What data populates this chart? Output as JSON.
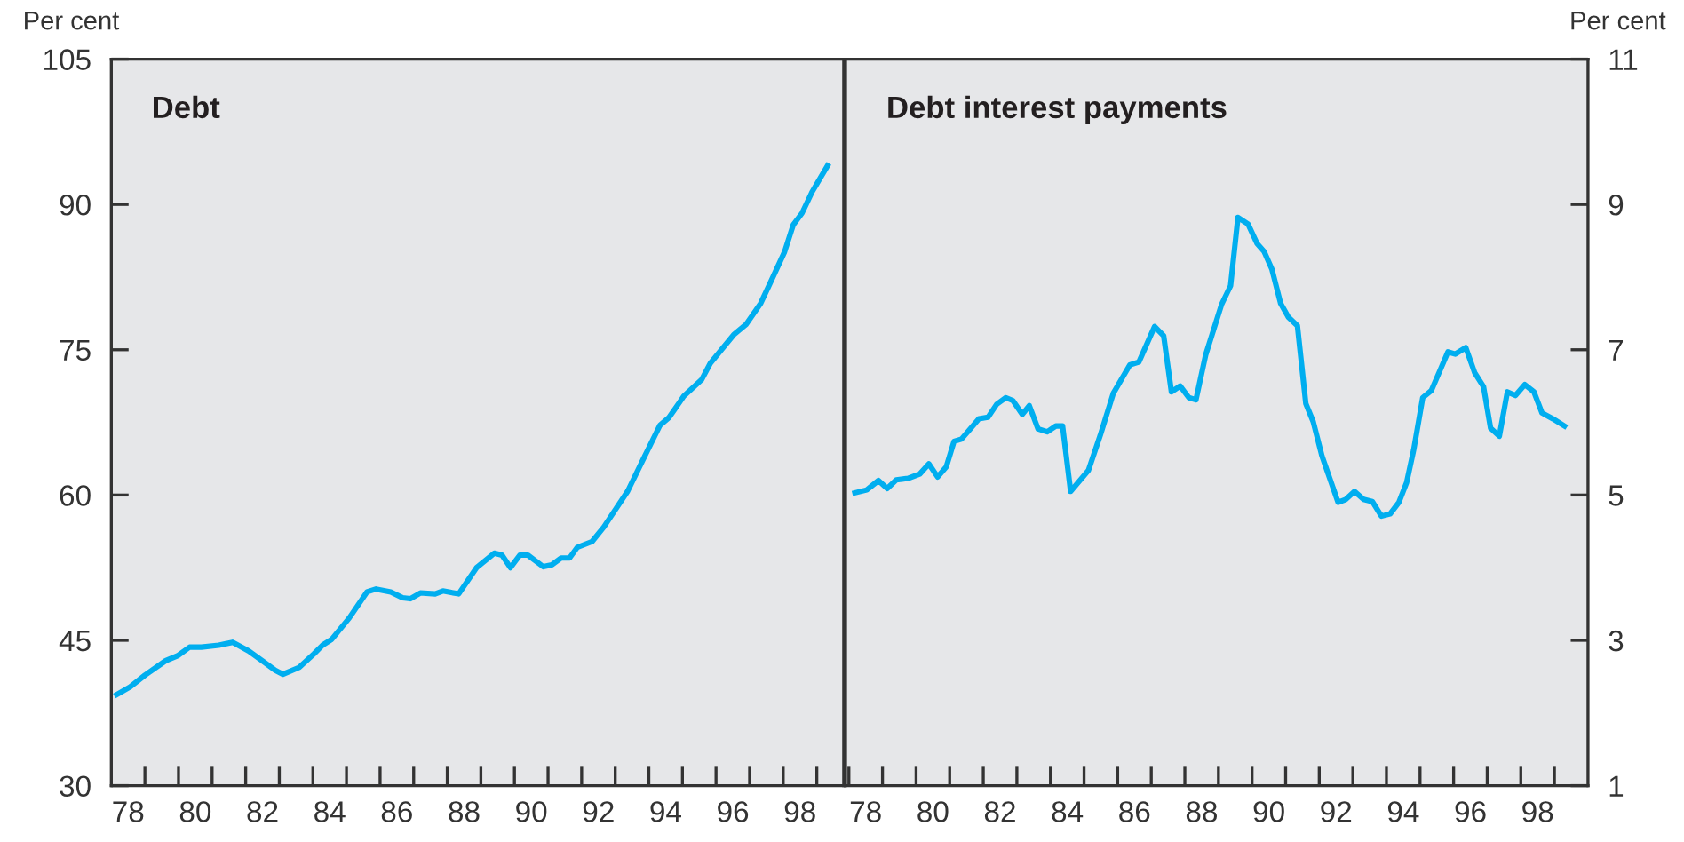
{
  "chart_data": [
    {
      "type": "line",
      "title": "Debt",
      "ylabel": "Per cent",
      "grid": false,
      "marker": "none",
      "line_style": "solid",
      "xlim": [
        77.5,
        99.3
      ],
      "ylim": [
        30,
        105
      ],
      "yticks": [
        30,
        45,
        60,
        75,
        90,
        105
      ],
      "xticks": [
        {
          "value": 78.5,
          "label": null
        },
        {
          "value": 79.5,
          "label": null
        },
        {
          "value": 80.5,
          "label": null
        },
        {
          "value": 81.5,
          "label": null
        },
        {
          "value": 82.5,
          "label": null
        },
        {
          "value": 83.5,
          "label": null
        },
        {
          "value": 84.5,
          "label": null
        },
        {
          "value": 85.5,
          "label": null
        },
        {
          "value": 86.5,
          "label": null
        },
        {
          "value": 87.5,
          "label": null
        },
        {
          "value": 88.5,
          "label": null
        },
        {
          "value": 89.5,
          "label": null
        },
        {
          "value": 90.5,
          "label": null
        },
        {
          "value": 91.5,
          "label": null
        },
        {
          "value": 92.5,
          "label": null
        },
        {
          "value": 93.5,
          "label": null
        },
        {
          "value": 94.5,
          "label": null
        },
        {
          "value": 95.5,
          "label": null
        },
        {
          "value": 96.5,
          "label": null
        },
        {
          "value": 97.5,
          "label": null
        },
        {
          "value": 98.5,
          "label": null
        },
        78,
        80,
        82,
        84,
        86,
        88,
        90,
        92,
        94,
        96,
        98
      ],
      "series": [
        {
          "color": "#00aeef",
          "x": [
            77.66,
            78.06,
            78.5,
            79.12,
            79.47,
            79.83,
            80.18,
            80.7,
            81.11,
            81.59,
            82.03,
            82.38,
            82.61,
            83.09,
            83.53,
            83.79,
            84.06,
            84.58,
            85.11,
            85.38,
            85.82,
            86.17,
            86.4,
            86.7,
            87.14,
            87.37,
            87.84,
            88.37,
            88.9,
            89.13,
            89.38,
            89.66,
            89.9,
            90.36,
            90.61,
            90.89,
            91.14,
            91.37,
            91.81,
            92.16,
            92.87,
            93.39,
            93.83,
            94.1,
            94.54,
            95.07,
            95.33,
            96.04,
            96.39,
            96.83,
            97.1,
            97.54,
            97.8,
            98.06,
            98.36,
            98.82
          ],
          "values": [
            39.4,
            40.2,
            41.4,
            42.9,
            43.4,
            44.3,
            44.3,
            44.5,
            44.8,
            43.9,
            42.8,
            41.9,
            41.5,
            42.2,
            43.6,
            44.5,
            45.1,
            47.3,
            50.0,
            50.3,
            50.0,
            49.4,
            49.3,
            49.9,
            49.8,
            50.1,
            49.8,
            52.5,
            54.0,
            53.8,
            52.5,
            53.8,
            53.8,
            52.6,
            52.8,
            53.5,
            53.5,
            54.6,
            55.2,
            56.7,
            60.4,
            64.1,
            67.2,
            68.0,
            70.2,
            71.9,
            73.6,
            76.6,
            77.6,
            79.8,
            81.8,
            85.1,
            87.9,
            89.1,
            91.3,
            94.0
          ]
        }
      ]
    },
    {
      "type": "line",
      "title": "Debt interest payments",
      "y2label": "Per cent",
      "grid": false,
      "marker": "none",
      "line_style": "solid",
      "xlim": [
        77.4,
        99.5
      ],
      "y2lim": [
        1,
        11
      ],
      "y2ticks": [
        1,
        3,
        5,
        7,
        9,
        11
      ],
      "xticks": [
        {
          "value": 77.5,
          "label": null
        },
        {
          "value": 78.5,
          "label": null
        },
        {
          "value": 79.5,
          "label": null
        },
        {
          "value": 80.5,
          "label": null
        },
        {
          "value": 81.5,
          "label": null
        },
        {
          "value": 82.5,
          "label": null
        },
        {
          "value": 83.5,
          "label": null
        },
        {
          "value": 84.5,
          "label": null
        },
        {
          "value": 85.5,
          "label": null
        },
        {
          "value": 86.5,
          "label": null
        },
        {
          "value": 87.5,
          "label": null
        },
        {
          "value": 88.5,
          "label": null
        },
        {
          "value": 89.5,
          "label": null
        },
        {
          "value": 90.5,
          "label": null
        },
        {
          "value": 91.5,
          "label": null
        },
        {
          "value": 92.5,
          "label": null
        },
        {
          "value": 93.5,
          "label": null
        },
        {
          "value": 94.5,
          "label": null
        },
        {
          "value": 95.5,
          "label": null
        },
        {
          "value": 96.5,
          "label": null
        },
        {
          "value": 97.5,
          "label": null
        },
        {
          "value": 98.5,
          "label": null
        },
        78,
        80,
        82,
        84,
        86,
        88,
        90,
        92,
        94,
        96,
        98
      ],
      "series": [
        {
          "color": "#00aeef",
          "axis": "y2",
          "x": [
            77.68,
            78.03,
            78.38,
            78.64,
            78.91,
            79.26,
            79.61,
            79.88,
            80.14,
            80.4,
            80.63,
            80.85,
            81.11,
            81.37,
            81.64,
            81.9,
            82.17,
            82.38,
            82.66,
            82.87,
            83.13,
            83.4,
            83.66,
            83.86,
            84.1,
            84.63,
            84.98,
            85.37,
            85.86,
            86.13,
            86.6,
            86.87,
            87.1,
            87.36,
            87.62,
            87.83,
            88.12,
            88.59,
            88.86,
            89.08,
            89.38,
            89.65,
            89.86,
            90.09,
            90.35,
            90.58,
            90.85,
            91.1,
            91.32,
            91.58,
            92.06,
            92.29,
            92.55,
            92.82,
            93.08,
            93.35,
            93.61,
            93.87,
            94.1,
            94.31,
            94.58,
            94.84,
            95.1,
            95.33,
            95.55,
            95.86,
            96.13,
            96.39,
            96.6,
            96.86,
            97.1,
            97.34,
            97.62,
            97.89,
            98.13,
            98.45,
            98.8
          ],
          "values": [
            5.03,
            5.07,
            5.2,
            5.09,
            5.21,
            5.23,
            5.29,
            5.43,
            5.25,
            5.39,
            5.74,
            5.77,
            5.91,
            6.05,
            6.07,
            6.25,
            6.34,
            6.3,
            6.11,
            6.23,
            5.91,
            5.87,
            5.95,
            5.95,
            5.05,
            5.34,
            5.82,
            6.4,
            6.79,
            6.83,
            7.32,
            7.19,
            6.42,
            6.5,
            6.34,
            6.31,
            6.93,
            7.62,
            7.88,
            8.82,
            8.73,
            8.46,
            8.35,
            8.11,
            7.64,
            7.45,
            7.33,
            6.26,
            6.01,
            5.54,
            4.9,
            4.94,
            5.05,
            4.94,
            4.91,
            4.71,
            4.74,
            4.9,
            5.17,
            5.62,
            6.34,
            6.44,
            6.72,
            6.97,
            6.94,
            7.03,
            6.68,
            6.49,
            5.92,
            5.81,
            6.42,
            6.37,
            6.52,
            6.42,
            6.13,
            6.05,
            5.95
          ]
        }
      ]
    }
  ]
}
